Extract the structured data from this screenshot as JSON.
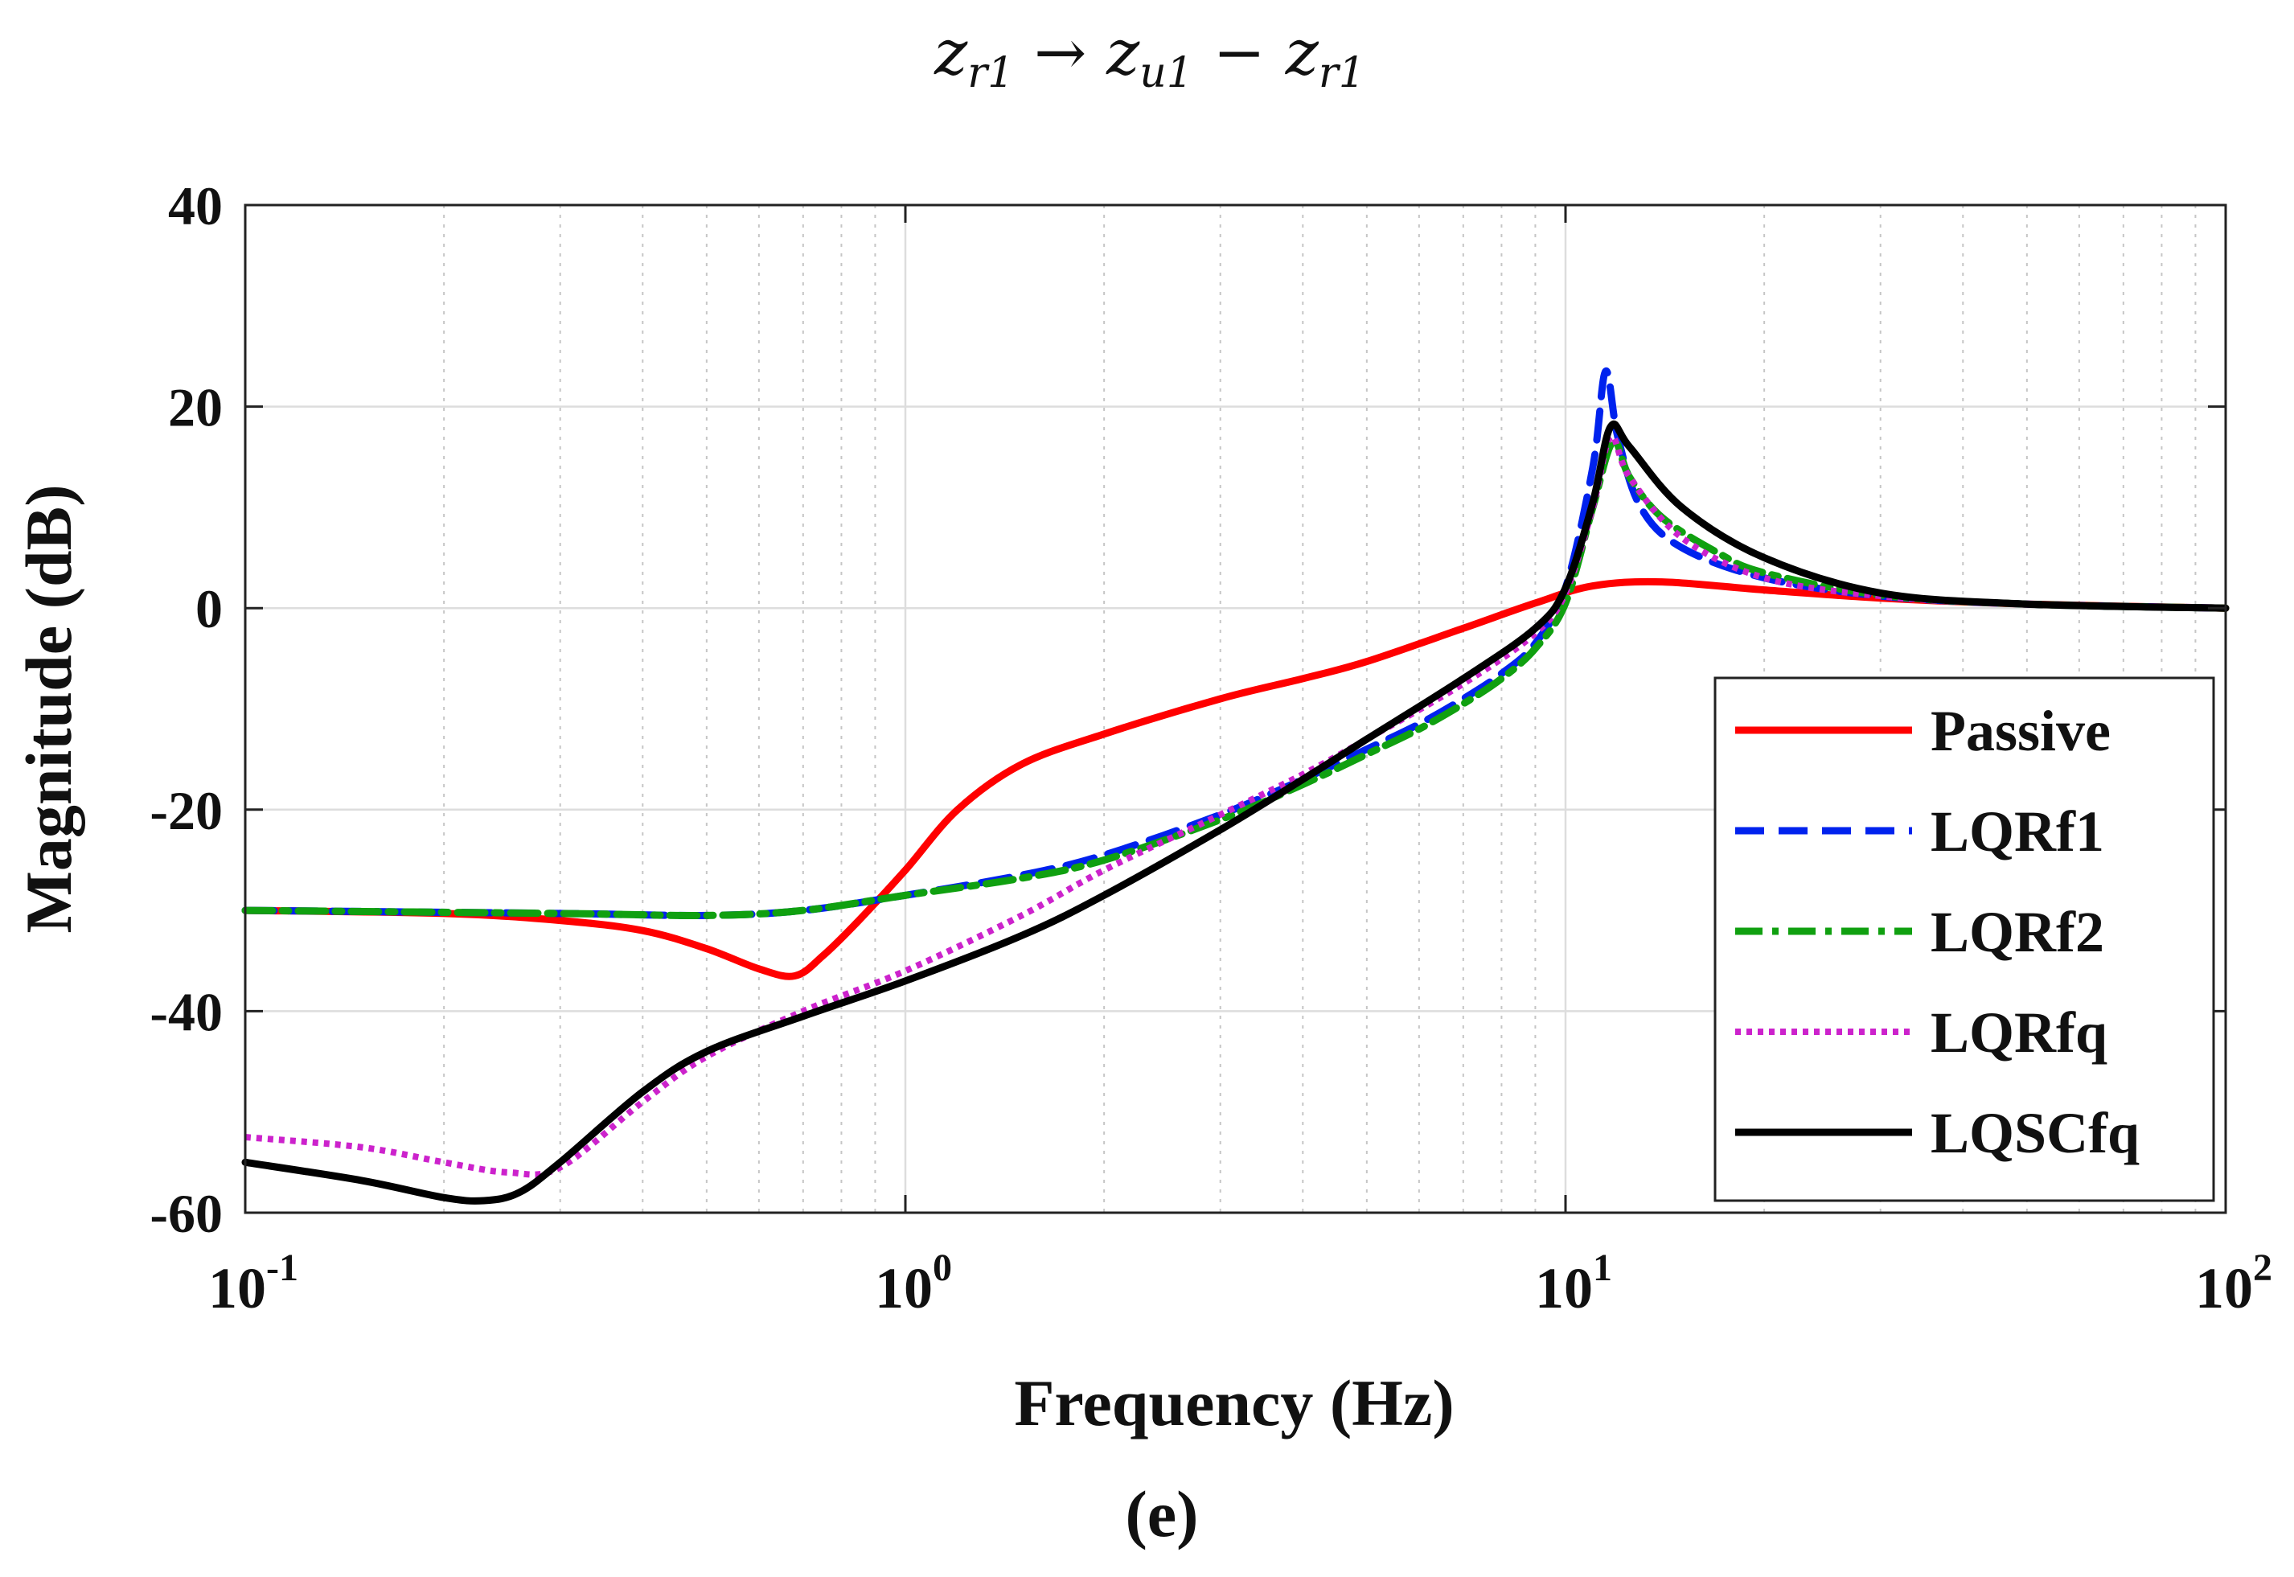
{
  "chart_data": {
    "type": "line",
    "title": "z_{r1} → z_{u1} − z_{r1}",
    "title_parts": {
      "a_base": "z",
      "a_sub": "r1",
      "arrow": "→",
      "b_base": "z",
      "b_sub": "u1",
      "minus": "−",
      "c_base": "z",
      "c_sub": "r1"
    },
    "xlabel": "Frequency (Hz)",
    "ylabel": "Magnitude (dB)",
    "subfigure_label": "(e)",
    "xscale": "log",
    "xlim": [
      0.1,
      100
    ],
    "ylim": [
      -60,
      40
    ],
    "grid": true,
    "legend_position": "lower-right",
    "x_ticks": [
      {
        "value": 0.1,
        "base": "10",
        "exp": "-1"
      },
      {
        "value": 1,
        "base": "10",
        "exp": "0"
      },
      {
        "value": 10,
        "base": "10",
        "exp": "1"
      },
      {
        "value": 100,
        "base": "10",
        "exp": "2"
      }
    ],
    "y_ticks": [
      {
        "value": 40,
        "label": "40"
      },
      {
        "value": 20,
        "label": "20"
      },
      {
        "value": 0,
        "label": "0"
      },
      {
        "value": -20,
        "label": "-20"
      },
      {
        "value": -40,
        "label": "-40"
      },
      {
        "value": -60,
        "label": "-60"
      }
    ],
    "series": [
      {
        "name": "Passive",
        "color": "#ff0000",
        "dash": "solid",
        "x": [
          0.1,
          0.2,
          0.3,
          0.4,
          0.5,
          0.6,
          0.68,
          0.75,
          0.85,
          1.0,
          1.2,
          1.5,
          2,
          3,
          4,
          5,
          7,
          9,
          11,
          14,
          20,
          30,
          50,
          100
        ],
        "y": [
          -30,
          -30.3,
          -31,
          -32,
          -33.8,
          -35.8,
          -36.5,
          -34.5,
          -31,
          -26,
          -20,
          -15.5,
          -12.5,
          -9,
          -7,
          -5.3,
          -2,
          0.5,
          2.2,
          2.6,
          1.8,
          1,
          0.4,
          0
        ]
      },
      {
        "name": "LQRf1",
        "color": "#0022ee",
        "dash": "long-dash",
        "x": [
          0.1,
          0.3,
          0.5,
          0.7,
          1.0,
          1.5,
          2,
          3,
          4,
          5,
          6,
          7,
          8,
          9,
          10,
          11,
          11.5,
          12,
          13,
          15,
          20,
          30,
          50,
          100
        ],
        "y": [
          -30,
          -30.3,
          -30.5,
          -30,
          -28.5,
          -26.5,
          -24.5,
          -20.5,
          -17,
          -14,
          -11.5,
          -9,
          -6.5,
          -3.5,
          2,
          14,
          23.5,
          17,
          10,
          6,
          3,
          1.2,
          0.4,
          0
        ]
      },
      {
        "name": "LQRf2",
        "color": "#10a010",
        "dash": "dash-dot",
        "x": [
          0.1,
          0.3,
          0.5,
          0.7,
          1.0,
          1.5,
          2,
          3,
          4,
          5,
          6,
          7,
          8,
          9,
          10,
          11,
          11.8,
          12.5,
          14,
          17,
          20,
          30,
          50,
          100
        ],
        "y": [
          -30,
          -30.3,
          -30.5,
          -30,
          -28.5,
          -26.8,
          -25,
          -21,
          -17.5,
          -14.5,
          -12,
          -9.5,
          -7,
          -4,
          0.5,
          10,
          16.5,
          13,
          9,
          5.5,
          3.5,
          1.3,
          0.4,
          0
        ]
      },
      {
        "name": "LQRfq",
        "color": "#cc22cc",
        "dash": "dotted",
        "x": [
          0.1,
          0.15,
          0.2,
          0.25,
          0.3,
          0.4,
          0.5,
          0.7,
          1.0,
          1.5,
          2,
          3,
          4,
          5,
          7,
          9,
          10,
          11,
          11.7,
          12.5,
          15,
          20,
          30,
          50,
          100
        ],
        "y": [
          -52.5,
          -53.5,
          -55,
          -56,
          -55.5,
          -49,
          -44.5,
          -40,
          -36,
          -30.5,
          -26,
          -20.5,
          -16.5,
          -13,
          -7.5,
          -2.5,
          1.5,
          10,
          17,
          13,
          7,
          3,
          1.2,
          0.4,
          0
        ]
      },
      {
        "name": "LQSCfq",
        "color": "#000000",
        "dash": "solid",
        "x": [
          0.1,
          0.15,
          0.2,
          0.23,
          0.26,
          0.3,
          0.4,
          0.5,
          0.7,
          1.0,
          1.5,
          2,
          3,
          4,
          5,
          7,
          9,
          10,
          11,
          11.7,
          12.5,
          15,
          20,
          30,
          50,
          100
        ],
        "y": [
          -55,
          -56.8,
          -58.5,
          -58.8,
          -58,
          -55,
          -48,
          -44,
          -40.5,
          -37,
          -32.5,
          -28.5,
          -22,
          -17,
          -13,
          -7,
          -2,
          2,
          10.5,
          18,
          16,
          10,
          5,
          1.5,
          0.4,
          0
        ]
      }
    ]
  }
}
